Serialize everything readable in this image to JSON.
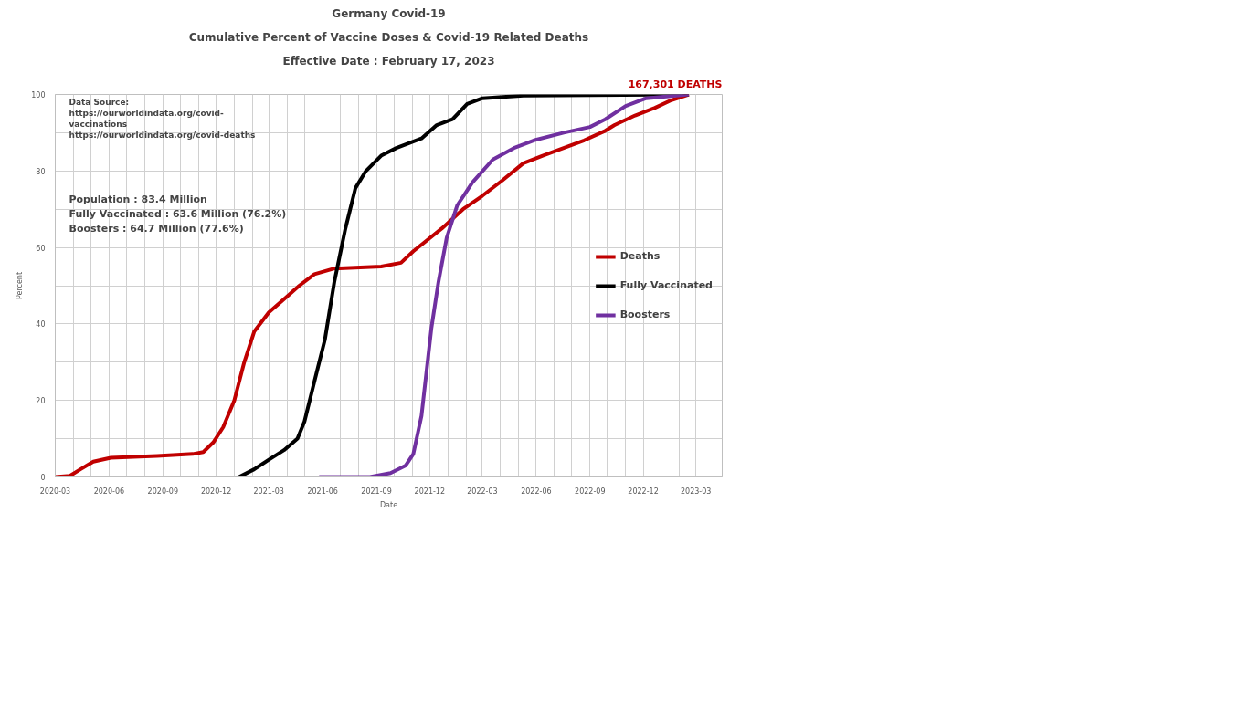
{
  "chart_data": {
    "type": "line",
    "title": "Germany Covid-19",
    "subtitle": "Cumulative Percent of Vaccine Doses & Covid-19 Related Deaths",
    "xlabel": "Date",
    "ylabel": "Percent",
    "annotations": [
      "Effective Date : February 17, 2023",
      "167,301 DEATHS",
      "Data Source:\nhttps://ourworldindata.org/covid-\nvaccinations\nhttps://ourworldindata.org/covid-deaths",
      "Population : 83.4 Million\nFully Vaccinated : 63.6 Million (76.2%)\nBoosters : 64.7 Million (77.6%)"
    ],
    "xlim": [
      "2020-03-01",
      "2023-04-15"
    ],
    "ylim": [
      0,
      100
    ],
    "xticks": [
      "2020-03",
      "2020-06",
      "2020-09",
      "2020-12",
      "2021-03",
      "2021-06",
      "2021-09",
      "2021-12",
      "2022-03",
      "2022-06",
      "2022-09",
      "2022-12",
      "2023-03"
    ],
    "yticks": [
      0,
      20,
      40,
      60,
      80,
      100
    ],
    "grid": true,
    "legend": "right",
    "series": [
      {
        "name": "Deaths",
        "color": "#c00000",
        "x": [
          "2020-03-01",
          "2020-03-26",
          "2020-04-13",
          "2020-05-05",
          "2020-06-04",
          "2020-08-22",
          "2020-10-22",
          "2020-11-09",
          "2020-11-26",
          "2020-12-13",
          "2021-01-01",
          "2021-01-18",
          "2021-02-04",
          "2021-03-01",
          "2021-03-27",
          "2021-04-22",
          "2021-05-18",
          "2021-06-21",
          "2021-09-09",
          "2021-10-13",
          "2021-11-03",
          "2021-12-22",
          "2022-01-27",
          "2022-03-01",
          "2022-04-04",
          "2022-05-10",
          "2022-06-12",
          "2022-07-18",
          "2022-08-22",
          "2022-09-27",
          "2022-10-13",
          "2022-11-17",
          "2022-12-21",
          "2023-01-18",
          "2023-02-17"
        ],
        "values": [
          0,
          0.3,
          2,
          4,
          5,
          5.5,
          6,
          6.5,
          9,
          13,
          20,
          30,
          38,
          43,
          46.5,
          50,
          53,
          54.5,
          55,
          56,
          59,
          65,
          70,
          73.5,
          77.5,
          82,
          84,
          86,
          88,
          90.5,
          92,
          94.5,
          96.5,
          98.5,
          100
        ]
      },
      {
        "name": "Fully Vaccinated",
        "color": "#000000",
        "x": [
          "2021-01-09",
          "2021-02-04",
          "2021-03-01",
          "2021-03-27",
          "2021-04-19",
          "2021-05-01",
          "2021-05-18",
          "2021-06-05",
          "2021-06-21",
          "2021-07-10",
          "2021-07-27",
          "2021-08-14",
          "2021-09-09",
          "2021-10-05",
          "2021-11-17",
          "2021-12-13",
          "2022-01-09",
          "2022-02-03",
          "2022-03-01",
          "2022-05-10",
          "2023-02-17"
        ],
        "values": [
          0,
          2,
          4.5,
          7,
          10,
          14.5,
          25,
          36,
          51,
          65,
          75.5,
          80,
          84,
          86,
          88.5,
          92,
          93.5,
          97.5,
          99,
          99.7,
          100
        ]
      },
      {
        "name": "Boosters",
        "color": "#7030a0",
        "x": [
          "2021-05-26",
          "2021-08-21",
          "2021-09-25",
          "2021-10-21",
          "2021-11-03",
          "2021-11-17",
          "2021-12-04",
          "2021-12-16",
          "2021-12-30",
          "2022-01-17",
          "2022-02-12",
          "2022-03-19",
          "2022-04-24",
          "2022-05-28",
          "2022-07-18",
          "2022-09-01",
          "2022-09-27",
          "2022-11-01",
          "2022-12-06",
          "2023-02-17"
        ],
        "values": [
          0,
          0,
          1,
          3,
          6,
          16,
          39,
          51,
          62.5,
          71,
          77,
          83,
          86,
          88,
          90,
          91.5,
          93.5,
          97,
          99,
          100
        ]
      }
    ]
  }
}
